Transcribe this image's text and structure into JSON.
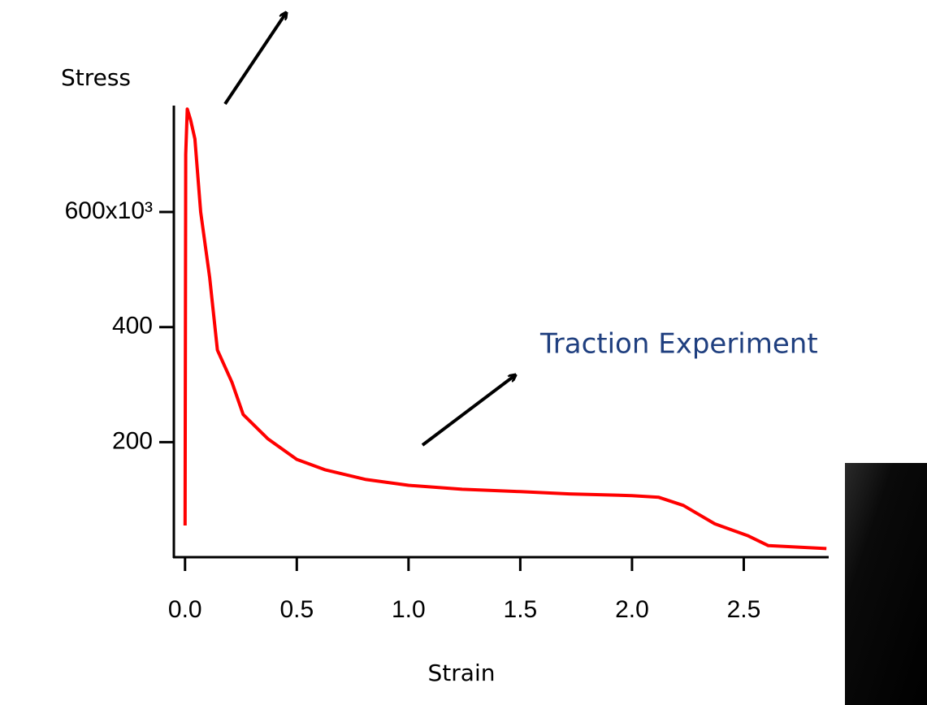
{
  "chart_data": {
    "type": "line",
    "x_label": "Strain",
    "y_label": "Stress",
    "annotation": "Traction Experiment",
    "xlim": [
      -0.05,
      2.88
    ],
    "xticks": [
      {
        "value": 0,
        "label": "0.0"
      },
      0.5,
      {
        "value": 1,
        "label": "1.0"
      },
      1.5,
      {
        "value": 2,
        "label": "2.0"
      },
      2.5
    ],
    "ylim": [
      0,
      785
    ],
    "yticks": [
      200,
      400,
      {
        "value": 600,
        "label": "600x10³"
      }
    ],
    "series": [
      {
        "name": "Stress",
        "color": "#ff0000",
        "x": [
          0,
          0.003,
          0.01,
          0.025,
          0.044,
          0.07,
          0.11,
          0.145,
          0.21,
          0.26,
          0.37,
          0.5,
          0.625,
          0.81,
          1.0,
          1.24,
          1.5,
          1.72,
          2.0,
          2.12,
          2.23,
          2.37,
          2.52,
          2.61,
          2.87
        ],
        "values": [
          55,
          700,
          779,
          760,
          727,
          600,
          487,
          360,
          304,
          248,
          206,
          170,
          152,
          135,
          125,
          118,
          114,
          110,
          107,
          104,
          90,
          58,
          37,
          20,
          15
        ]
      }
    ]
  }
}
